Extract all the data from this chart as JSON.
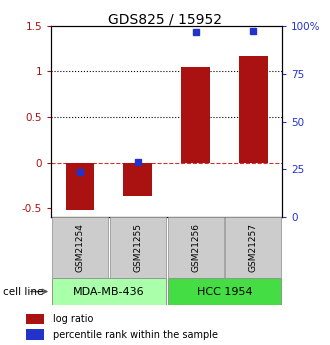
{
  "title": "GDS825 / 15952",
  "samples": [
    "GSM21254",
    "GSM21255",
    "GSM21256",
    "GSM21257"
  ],
  "log_ratios": [
    -0.52,
    -0.37,
    1.05,
    1.17
  ],
  "percentile_ranks": [
    23.5,
    29.0,
    97.0,
    97.5
  ],
  "cell_lines": [
    {
      "label": "MDA-MB-436",
      "samples": [
        0,
        1
      ],
      "color": "#aaffaa"
    },
    {
      "label": "HCC 1954",
      "samples": [
        2,
        3
      ],
      "color": "#44dd44"
    }
  ],
  "bar_color": "#aa1111",
  "dot_color": "#2233cc",
  "ylim_left": [
    -0.6,
    1.5
  ],
  "ylim_right": [
    0,
    100
  ],
  "right_ticks": [
    0,
    25,
    50,
    75,
    100
  ],
  "right_tick_labels": [
    "0",
    "25",
    "50",
    "75",
    "100%"
  ],
  "left_ticks": [
    -0.5,
    0.0,
    0.5,
    1.0,
    1.5
  ],
  "left_tick_labels": [
    "-0.5",
    "0",
    "0.5",
    "1",
    "1.5"
  ],
  "hlines_dotted": [
    0.5,
    1.0
  ],
  "hline_dashed_color": "#cc3333",
  "bar_width": 0.5,
  "legend_log_ratio": "log ratio",
  "legend_percentile": "percentile rank within the sample",
  "cell_line_label": "cell line",
  "sample_box_color": "#cccccc",
  "title_fontsize": 10,
  "tick_fontsize": 7.5,
  "legend_fontsize": 7.0,
  "sample_fontsize": 6.5
}
